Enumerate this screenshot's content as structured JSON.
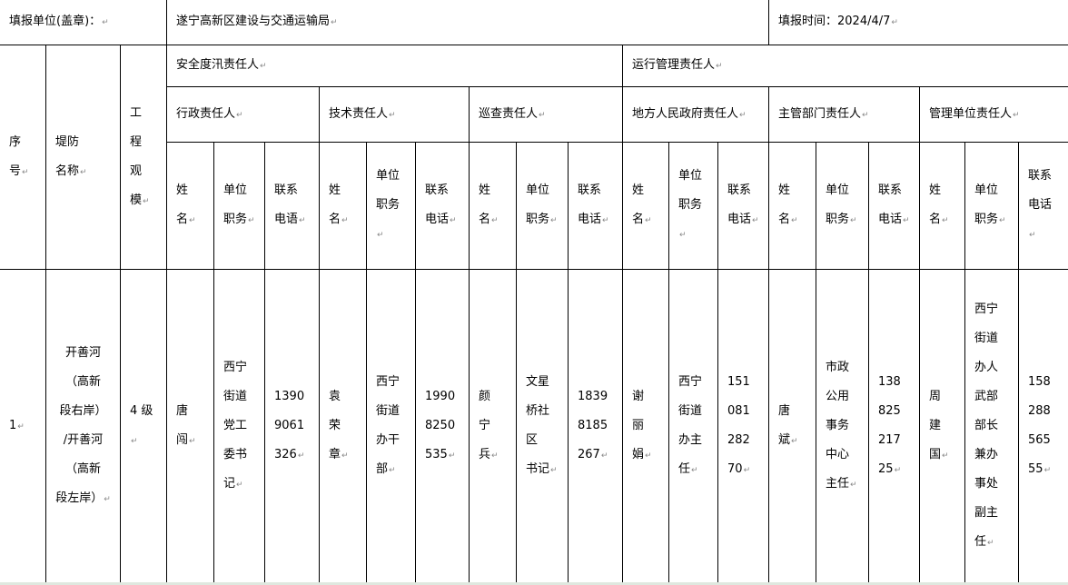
{
  "header": {
    "unit_label": "填报单位(盖章)：",
    "unit_value": "遂宁高新区建设与交通运输局",
    "date_label": "填报时间：2024/4/7"
  },
  "columns": {
    "seq": "序\n号",
    "dike_name": "堤防\n名称",
    "scale": "工\n程\n观\n模",
    "group_safety": "安全度汛责任人",
    "group_operation": "运行管理责任人",
    "roles": [
      "行政责任人",
      "技术责任人",
      "巡查责任人",
      "地方人民政府责任人",
      "主管部门责任人",
      "管理单位责任人"
    ],
    "sub": [
      [
        "姓\n名",
        "单位\n职务",
        "联系\n电语"
      ],
      [
        "姓\n名",
        "单位\n职务",
        "联系\n电话"
      ],
      [
        "姓\n名",
        "单位\n职务",
        "联系\n电话"
      ],
      [
        "姓\n名",
        "单位\n职务",
        "联系\n电话"
      ],
      [
        "姓\n名",
        "单位\n职务",
        "联系\n电话"
      ],
      [
        "姓\n名",
        "单位\n职务",
        "联系\n电话"
      ]
    ]
  },
  "rows": [
    {
      "seq": "1",
      "dike_name": "开善河\n（高新\n段右岸）\n/开善河\n（高新\n段左岸）",
      "scale": "4 级",
      "persons": [
        {
          "name": "唐\n闯",
          "position": "西宁\n街道\n党工\n委书\n记",
          "phone": "1390\n9061\n326"
        },
        {
          "name": "袁\n荣\n章",
          "position": "西宁\n街道\n办干\n部",
          "phone": "1990\n8250\n535"
        },
        {
          "name": "颜\n宁\n兵",
          "position": "文星\n桥社\n区\n书记",
          "phone": "1839\n8185\n267"
        },
        {
          "name": "谢\n丽\n娟",
          "position": "西宁\n街道\n办主\n任",
          "phone": "151\n081\n282\n70"
        },
        {
          "name": "唐\n斌",
          "position": "市政\n公用\n事务\n中心\n主任",
          "phone": "138\n825\n217\n25"
        },
        {
          "name": "周\n建\n国",
          "position": "西宁\n街道\n办人\n武部\n部长\n兼办\n事处\n副主\n任",
          "phone": "158\n288\n565\n55"
        }
      ]
    }
  ]
}
